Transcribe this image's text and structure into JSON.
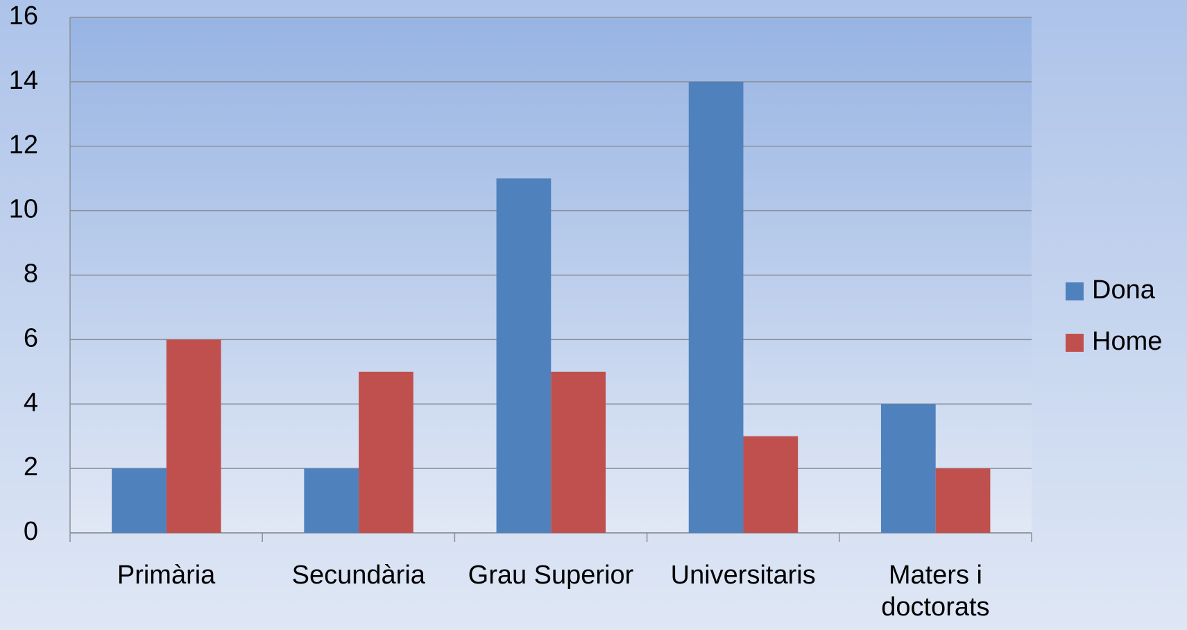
{
  "chart_data": {
    "type": "bar",
    "categories": [
      "Primària",
      "Secundària",
      "Grau Superior",
      "Universitaris",
      "Maters i doctorats"
    ],
    "series": [
      {
        "name": "Dona",
        "color": "#4f81bd",
        "values": [
          2,
          2,
          11,
          14,
          4
        ]
      },
      {
        "name": "Home",
        "color": "#c0504d",
        "values": [
          6,
          5,
          5,
          3,
          2
        ]
      }
    ],
    "ylim": [
      0,
      16
    ],
    "yticks": [
      0,
      2,
      4,
      6,
      8,
      10,
      12,
      14,
      16
    ],
    "grid": true,
    "legend": "right"
  }
}
